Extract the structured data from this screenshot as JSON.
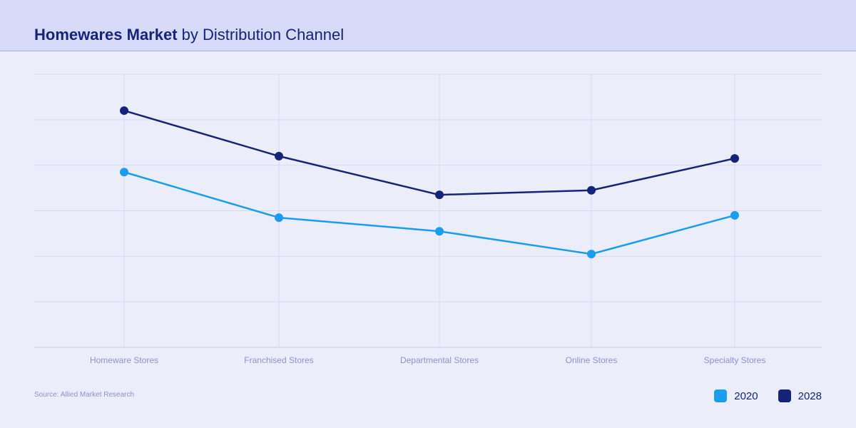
{
  "header": {
    "title_bold": "Homewares Market",
    "title_rest": "by Distribution Channel"
  },
  "source": "Source: Allied Market Research",
  "chart_data": {
    "type": "line",
    "categories": [
      "Homeware Stores",
      "Franchised Stores",
      "Departmental Stores",
      "Online Stores",
      "Specialty Stores"
    ],
    "series": [
      {
        "name": "2020",
        "color": "#1a9cf0",
        "values": [
          3.85,
          2.85,
          2.55,
          2.05,
          2.9
        ]
      },
      {
        "name": "2028",
        "color": "#16237a",
        "values": [
          5.2,
          4.2,
          3.35,
          3.45,
          4.15
        ]
      }
    ],
    "ylim": [
      0,
      6
    ],
    "grid": true,
    "legend_position": "bottom-right",
    "xlabel": "",
    "ylabel": ""
  }
}
